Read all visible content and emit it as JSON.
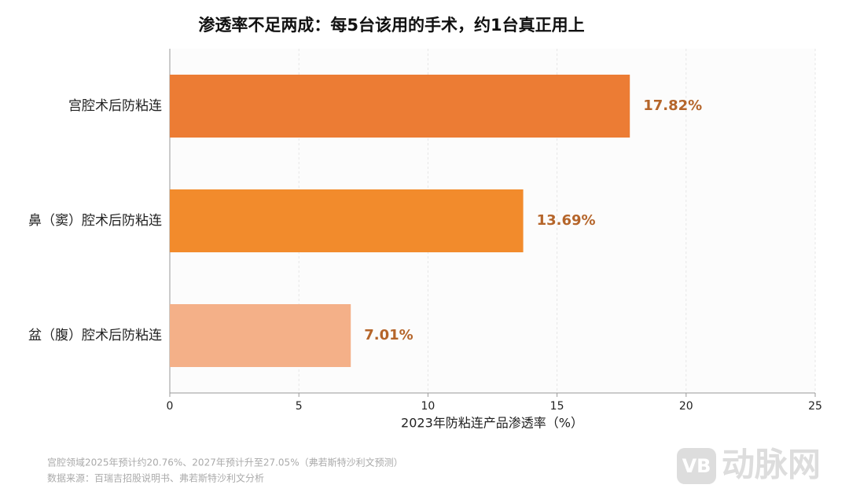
{
  "chart_data": {
    "type": "hbar",
    "title": "渗透率不足两成：每5台该用的手术，约1台真正用上",
    "categories": [
      "宫腔术后防粘连",
      "鼻（窦）腔术后防粘连",
      "盆（腹）腔术后防粘连"
    ],
    "values": [
      17.82,
      13.69,
      7.01
    ],
    "value_labels": [
      "17.82%",
      "13.69%",
      "7.01%"
    ],
    "colors": [
      "#ec7c34",
      "#f28b2c",
      "#f4b088"
    ],
    "label_color": "#b5652a",
    "xlabel": "2023年防粘连产品渗透率（%）",
    "xlim": [
      0,
      25
    ],
    "xticks": [
      0,
      5,
      10,
      15,
      20,
      25
    ],
    "grid": true,
    "notes": [
      "宫腔领域2025年预计约20.76%、2027年预计升至27.05%（弗若斯特沙利文预测）",
      "数据来源：百瑞吉招股说明书、弗若斯特沙利文分析"
    ]
  },
  "watermark": {
    "logo": "VB",
    "text": "动脉网"
  }
}
